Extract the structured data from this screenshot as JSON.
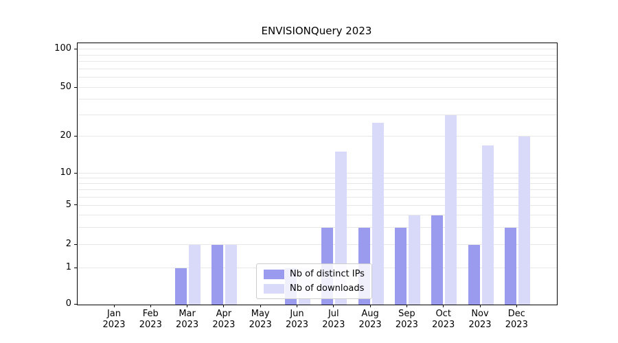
{
  "title": "ENVISIONQuery 2023",
  "chart_data": {
    "type": "bar",
    "title": "ENVISIONQuery 2023",
    "categories": [
      "Jan 2023",
      "Feb 2023",
      "Mar 2023",
      "Apr 2023",
      "May 2023",
      "Jun 2023",
      "Jul 2023",
      "Aug 2023",
      "Sep 2023",
      "Oct 2023",
      "Nov 2023",
      "Dec 2023"
    ],
    "series": [
      {
        "name": "Nb of distinct IPs",
        "color": "#9a9aef",
        "values": [
          0,
          0,
          1,
          2,
          0,
          1,
          3,
          3,
          3,
          4,
          2,
          3
        ]
      },
      {
        "name": "Nb of downloads",
        "color": "#d9d9fa",
        "values": [
          0,
          0,
          2,
          2,
          0,
          1,
          15,
          26,
          4,
          30,
          17,
          20
        ]
      }
    ],
    "yscale": "symlog",
    "ylim": [
      0,
      100
    ],
    "y_ticks": [
      0,
      1,
      2,
      5,
      10,
      20,
      50,
      100
    ],
    "y_minor_gridlines": [
      3,
      4,
      6,
      7,
      8,
      9,
      30,
      40,
      60,
      70,
      80,
      90
    ],
    "grid": true,
    "legend_position": "lower center"
  },
  "colors": {
    "grid": "#e7e7e7",
    "axis": "#000000",
    "background": "#ffffff",
    "legend_border": "#cccccc"
  }
}
